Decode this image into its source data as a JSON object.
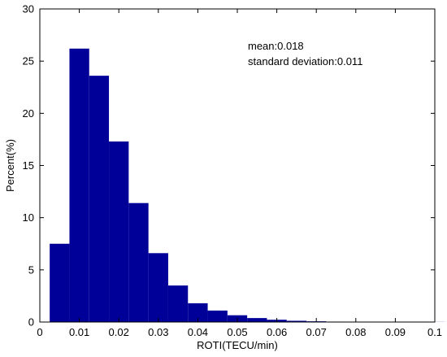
{
  "chart_data": {
    "type": "bar",
    "title": "",
    "xlabel": "ROTI(TECU/min)",
    "ylabel": "Percent(%)",
    "xlim": [
      0,
      0.1
    ],
    "ylim": [
      0,
      30
    ],
    "x_ticks": [
      "0",
      "0.01",
      "0.02",
      "0.03",
      "0.04",
      "0.05",
      "0.06",
      "0.07",
      "0.08",
      "0.09",
      "0.1"
    ],
    "y_ticks": [
      "0",
      "5",
      "10",
      "15",
      "20",
      "25",
      "30"
    ],
    "bar_color": "#000099",
    "bin_width": 0.005,
    "bin_starts": [
      0.0025,
      0.0075,
      0.0125,
      0.0175,
      0.0225,
      0.0275,
      0.0325,
      0.0375,
      0.0425,
      0.0475,
      0.0525,
      0.0575,
      0.0625,
      0.0675,
      0.0725,
      0.0775,
      0.0825,
      0.0875,
      0.0925,
      0.0975
    ],
    "values": [
      7.5,
      26.2,
      23.6,
      17.3,
      11.4,
      6.6,
      3.5,
      1.8,
      1.1,
      0.65,
      0.38,
      0.22,
      0.12,
      0.07,
      0.04,
      0.03,
      0.02,
      0.015,
      0.01,
      0.01
    ],
    "grid": false,
    "annotations": [
      "mean:0.018",
      "standard deviation:0.011"
    ]
  }
}
